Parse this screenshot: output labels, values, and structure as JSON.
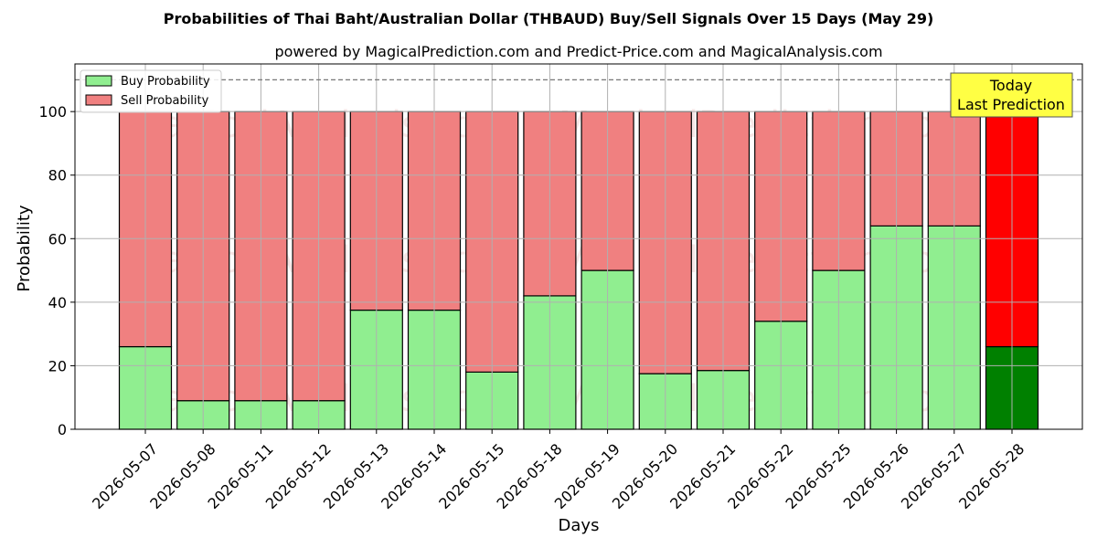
{
  "chart_data": {
    "type": "bar",
    "stacked": true,
    "title": "Probabilities of Thai Baht/Australian Dollar (THBAUD) Buy/Sell Signals Over 15 Days (May 29)",
    "subtitle": "powered by MagicalPrediction.com and Predict-Price.com and MagicalAnalysis.com",
    "xlabel": "Days",
    "ylabel": "Probability",
    "ylim": [
      0,
      115
    ],
    "yticks": [
      0,
      20,
      40,
      60,
      80,
      100
    ],
    "reference_line": 110,
    "grid": true,
    "legend_position": "top-left",
    "categories": [
      "2026-05-07",
      "2026-05-08",
      "2026-05-11",
      "2026-05-12",
      "2026-05-13",
      "2026-05-14",
      "2026-05-15",
      "2026-05-18",
      "2026-05-19",
      "2026-05-20",
      "2026-05-21",
      "2026-05-22",
      "2026-05-25",
      "2026-05-26",
      "2026-05-27",
      "2026-05-28"
    ],
    "series": [
      {
        "name": "Buy Probability",
        "color": "#90ee90",
        "highlight_color": "#008000",
        "values": [
          26,
          9,
          9,
          9,
          37.5,
          37.5,
          18,
          42,
          50,
          17.5,
          18.5,
          34,
          50,
          64,
          64,
          26
        ]
      },
      {
        "name": "Sell Probability",
        "color": "#f08080",
        "highlight_color": "#ff0000",
        "values": [
          74,
          91,
          91,
          91,
          62.5,
          62.5,
          82,
          58,
          50,
          82.5,
          81.5,
          66,
          50,
          36,
          36,
          74
        ]
      }
    ],
    "annotation": {
      "line1": "Today",
      "line2": "Last Prediction",
      "color": "#ffff44"
    },
    "watermarks": [
      "MagicalAnalysis.com",
      "MagicalPrediction.com"
    ]
  }
}
